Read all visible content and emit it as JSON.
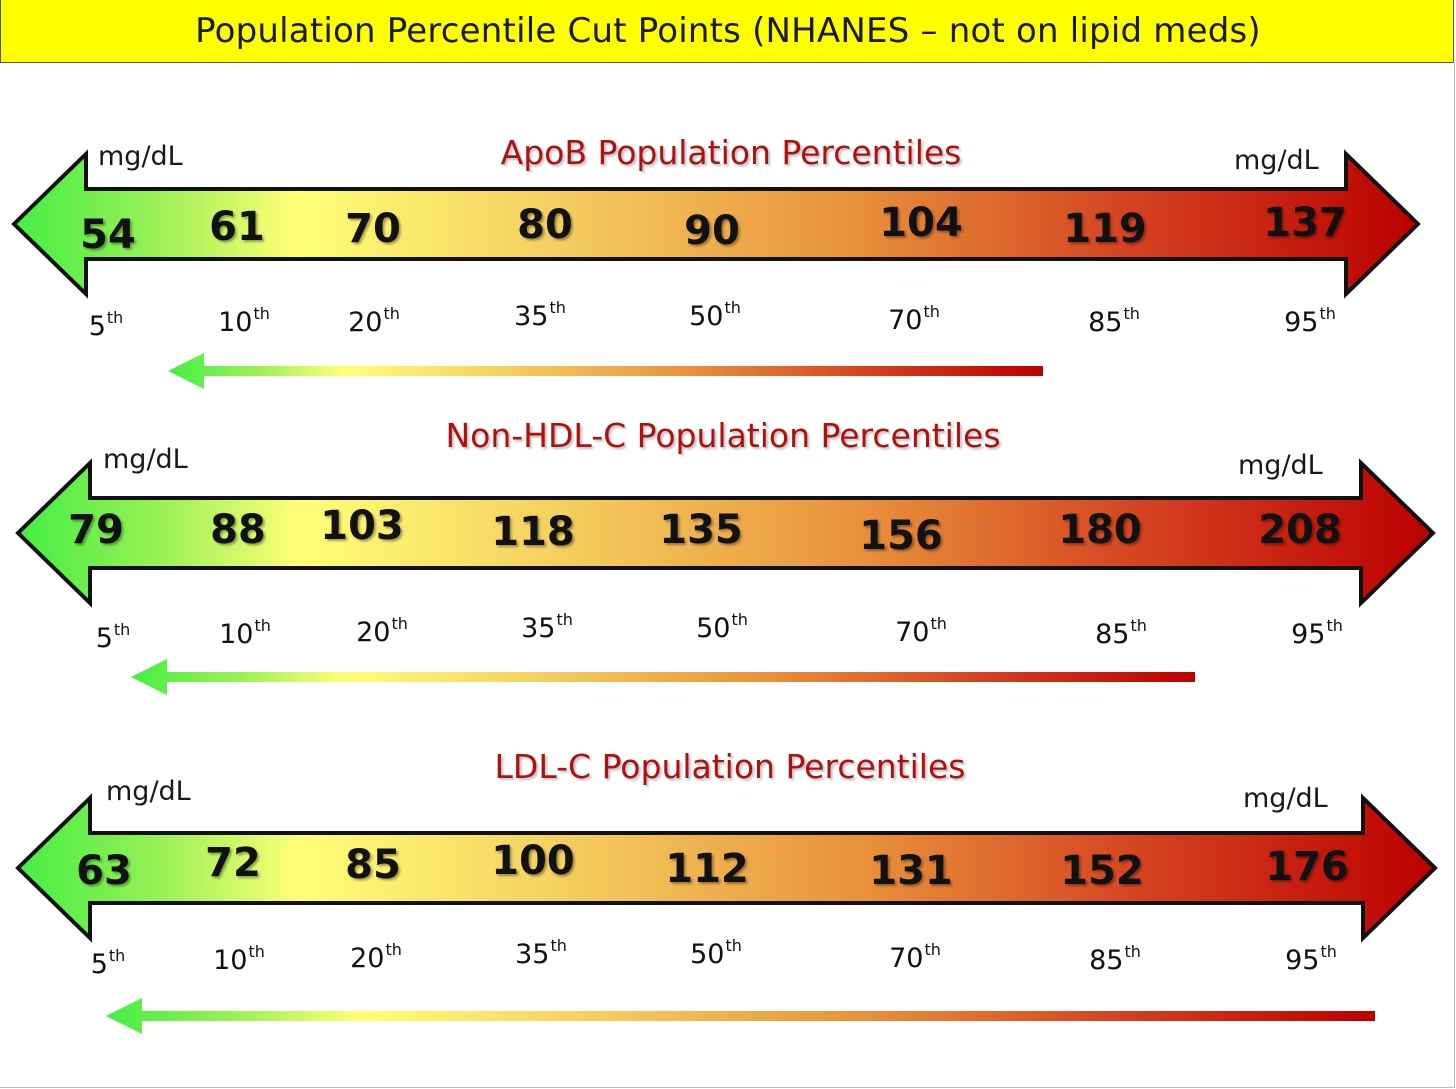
{
  "banner": {
    "title": "Population Percentile Cut Points (NHANES – not on lipid meds)",
    "color": "#ffff00"
  },
  "colors": {
    "low": "#44ee44",
    "mid": "#ffff77",
    "high": "#bb0000",
    "title_red": "#b01010"
  },
  "panels": [
    {
      "title": "ApoB Population Percentiles",
      "unit_left": "mg/dL",
      "unit_right": "mg/dL",
      "values": [
        "54",
        "61",
        "70",
        "80",
        "90",
        "104",
        "119",
        "137"
      ],
      "percentiles": [
        {
          "num": "5",
          "sfx": "th"
        },
        {
          "num": "10",
          "sfx": "th"
        },
        {
          "num": "20",
          "sfx": "th"
        },
        {
          "num": "35",
          "sfx": "th"
        },
        {
          "num": "50",
          "sfx": "th"
        },
        {
          "num": "70",
          "sfx": "th"
        },
        {
          "num": "85",
          "sfx": "th"
        },
        {
          "num": "95",
          "sfx": "th"
        }
      ]
    },
    {
      "title": "Non-HDL-C Population Percentiles",
      "unit_left": "mg/dL",
      "unit_right": "mg/dL",
      "values": [
        "79",
        "88",
        "103",
        "118",
        "135",
        "156",
        "180",
        "208"
      ],
      "percentiles": [
        {
          "num": "5",
          "sfx": "th"
        },
        {
          "num": "10",
          "sfx": "th"
        },
        {
          "num": "20",
          "sfx": "th"
        },
        {
          "num": "35",
          "sfx": "th"
        },
        {
          "num": "50",
          "sfx": "th"
        },
        {
          "num": "70",
          "sfx": "th"
        },
        {
          "num": "85",
          "sfx": "th"
        },
        {
          "num": "95",
          "sfx": "th"
        }
      ]
    },
    {
      "title": "LDL-C Population Percentiles",
      "unit_left": "mg/dL",
      "unit_right": "mg/dL",
      "values": [
        "63",
        "72",
        "85",
        "100",
        "112",
        "131",
        "152",
        "176"
      ],
      "percentiles": [
        {
          "num": "5",
          "sfx": "th"
        },
        {
          "num": "10",
          "sfx": "th"
        },
        {
          "num": "20",
          "sfx": "th"
        },
        {
          "num": "35",
          "sfx": "th"
        },
        {
          "num": "50",
          "sfx": "th"
        },
        {
          "num": "70",
          "sfx": "th"
        },
        {
          "num": "85",
          "sfx": "th"
        },
        {
          "num": "95",
          "sfx": "th"
        }
      ]
    }
  ]
}
